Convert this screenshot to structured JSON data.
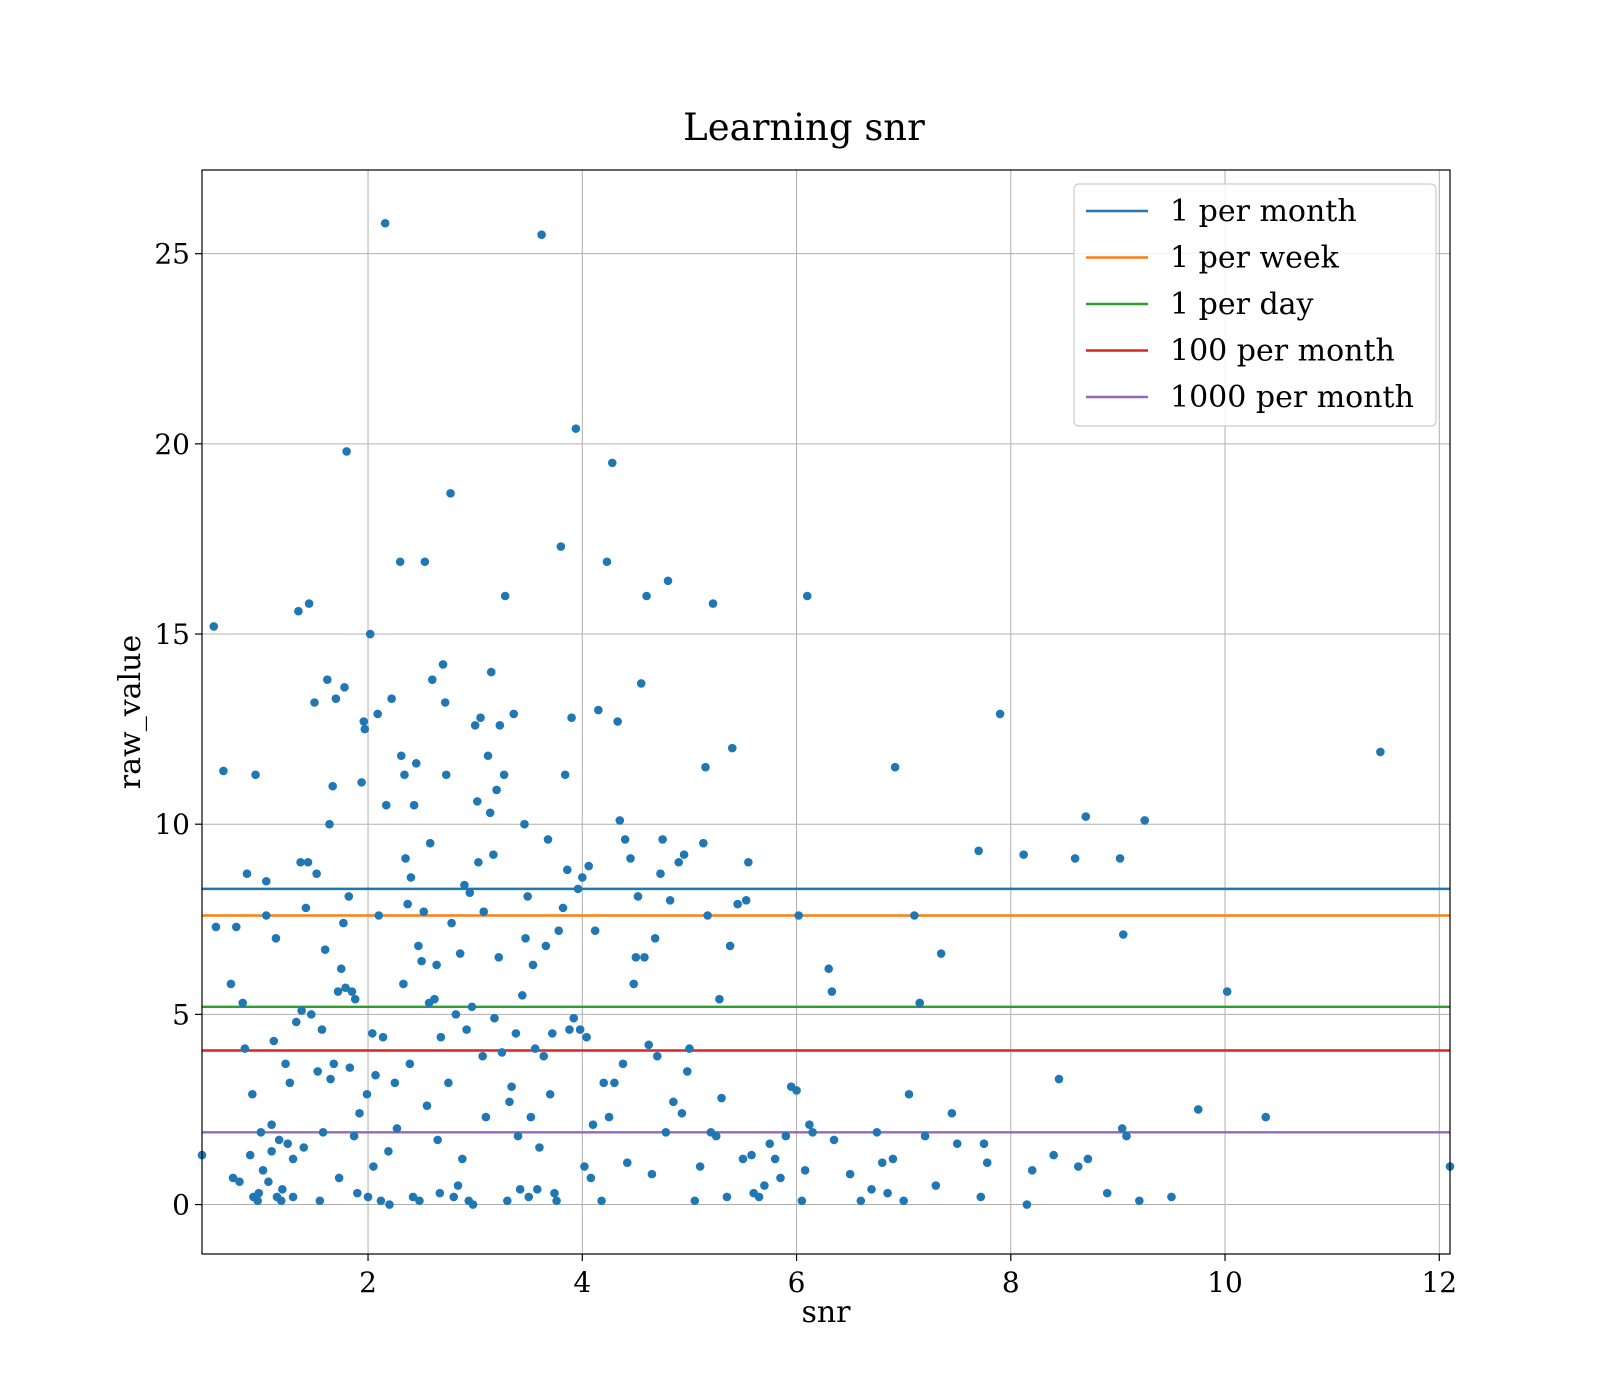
{
  "chart_data": {
    "type": "scatter",
    "title": "Learning snr",
    "xlabel": "snr",
    "ylabel": "raw_value",
    "xlim": [
      0.45,
      12.1
    ],
    "ylim": [
      -1.3,
      27.2
    ],
    "xticks": [
      2,
      4,
      6,
      8,
      10,
      12
    ],
    "yticks": [
      0,
      5,
      10,
      15,
      20,
      25
    ],
    "grid": true,
    "legend_position": "top-right",
    "point_color": "#1f77b4",
    "points": [
      [
        0.45,
        1.3
      ],
      [
        0.56,
        15.2
      ],
      [
        0.58,
        7.3
      ],
      [
        0.65,
        11.4
      ],
      [
        0.72,
        5.8
      ],
      [
        0.74,
        0.7
      ],
      [
        0.77,
        7.3
      ],
      [
        0.8,
        0.6
      ],
      [
        0.83,
        5.3
      ],
      [
        0.85,
        4.1
      ],
      [
        0.87,
        8.7
      ],
      [
        0.9,
        1.3
      ],
      [
        0.92,
        2.9
      ],
      [
        0.93,
        0.2
      ],
      [
        0.95,
        11.3
      ],
      [
        0.97,
        0.1
      ],
      [
        0.98,
        0.3
      ],
      [
        1.0,
        1.9
      ],
      [
        1.02,
        0.9
      ],
      [
        1.05,
        8.5
      ],
      [
        1.05,
        7.6
      ],
      [
        1.07,
        0.6
      ],
      [
        1.1,
        1.4
      ],
      [
        1.1,
        2.1
      ],
      [
        1.12,
        4.3
      ],
      [
        1.14,
        7.0
      ],
      [
        1.15,
        0.2
      ],
      [
        1.17,
        1.7
      ],
      [
        1.19,
        0.1
      ],
      [
        1.2,
        0.4
      ],
      [
        1.23,
        3.7
      ],
      [
        1.25,
        1.6
      ],
      [
        1.27,
        3.2
      ],
      [
        1.3,
        0.2
      ],
      [
        1.3,
        1.2
      ],
      [
        1.33,
        4.8
      ],
      [
        1.35,
        15.6
      ],
      [
        1.37,
        9.0
      ],
      [
        1.38,
        5.1
      ],
      [
        1.4,
        1.5
      ],
      [
        1.42,
        7.8
      ],
      [
        1.44,
        9.0
      ],
      [
        1.45,
        15.8
      ],
      [
        1.47,
        5.0
      ],
      [
        1.5,
        13.2
      ],
      [
        1.52,
        8.7
      ],
      [
        1.53,
        3.5
      ],
      [
        1.55,
        0.1
      ],
      [
        1.57,
        4.6
      ],
      [
        1.58,
        1.9
      ],
      [
        1.6,
        6.7
      ],
      [
        1.62,
        13.8
      ],
      [
        1.64,
        10.0
      ],
      [
        1.65,
        3.3
      ],
      [
        1.67,
        11.0
      ],
      [
        1.68,
        3.7
      ],
      [
        1.7,
        13.3
      ],
      [
        1.72,
        5.6
      ],
      [
        1.73,
        0.7
      ],
      [
        1.75,
        6.2
      ],
      [
        1.77,
        7.4
      ],
      [
        1.78,
        13.6
      ],
      [
        1.79,
        5.7
      ],
      [
        1.8,
        19.8
      ],
      [
        1.82,
        8.1
      ],
      [
        1.83,
        3.6
      ],
      [
        1.85,
        5.6
      ],
      [
        1.87,
        1.8
      ],
      [
        1.88,
        5.4
      ],
      [
        1.9,
        0.3
      ],
      [
        1.92,
        2.4
      ],
      [
        1.94,
        11.1
      ],
      [
        1.96,
        12.7
      ],
      [
        1.97,
        12.5
      ],
      [
        1.99,
        2.9
      ],
      [
        2.0,
        0.2
      ],
      [
        2.02,
        15.0
      ],
      [
        2.04,
        4.5
      ],
      [
        2.05,
        1.0
      ],
      [
        2.07,
        3.4
      ],
      [
        2.09,
        12.9
      ],
      [
        2.1,
        7.6
      ],
      [
        2.12,
        0.1
      ],
      [
        2.14,
        4.4
      ],
      [
        2.16,
        25.8
      ],
      [
        2.17,
        10.5
      ],
      [
        2.19,
        1.4
      ],
      [
        2.2,
        0.0
      ],
      [
        2.22,
        13.3
      ],
      [
        2.25,
        3.2
      ],
      [
        2.27,
        2.0
      ],
      [
        2.3,
        16.9
      ],
      [
        2.31,
        11.8
      ],
      [
        2.33,
        5.8
      ],
      [
        2.34,
        11.3
      ],
      [
        2.35,
        9.1
      ],
      [
        2.37,
        7.9
      ],
      [
        2.39,
        3.7
      ],
      [
        2.4,
        8.6
      ],
      [
        2.42,
        0.2
      ],
      [
        2.43,
        10.5
      ],
      [
        2.45,
        11.6
      ],
      [
        2.47,
        6.8
      ],
      [
        2.48,
        0.1
      ],
      [
        2.5,
        6.4
      ],
      [
        2.52,
        7.7
      ],
      [
        2.53,
        16.9
      ],
      [
        2.55,
        2.6
      ],
      [
        2.57,
        5.3
      ],
      [
        2.58,
        9.5
      ],
      [
        2.6,
        13.8
      ],
      [
        2.62,
        5.4
      ],
      [
        2.64,
        6.3
      ],
      [
        2.65,
        1.7
      ],
      [
        2.67,
        0.3
      ],
      [
        2.68,
        4.4
      ],
      [
        2.7,
        14.2
      ],
      [
        2.72,
        13.2
      ],
      [
        2.73,
        11.3
      ],
      [
        2.75,
        3.2
      ],
      [
        2.77,
        18.7
      ],
      [
        2.78,
        7.4
      ],
      [
        2.8,
        0.2
      ],
      [
        2.82,
        5.0
      ],
      [
        2.84,
        0.5
      ],
      [
        2.86,
        6.6
      ],
      [
        2.88,
        1.2
      ],
      [
        2.9,
        8.4
      ],
      [
        2.92,
        4.6
      ],
      [
        2.94,
        0.1
      ],
      [
        2.95,
        8.2
      ],
      [
        2.97,
        5.2
      ],
      [
        2.98,
        0.0
      ],
      [
        3.0,
        12.6
      ],
      [
        3.02,
        10.6
      ],
      [
        3.03,
        9.0
      ],
      [
        3.05,
        12.8
      ],
      [
        3.07,
        3.9
      ],
      [
        3.08,
        7.7
      ],
      [
        3.1,
        2.3
      ],
      [
        3.12,
        11.8
      ],
      [
        3.14,
        10.3
      ],
      [
        3.15,
        14.0
      ],
      [
        3.17,
        9.2
      ],
      [
        3.18,
        4.9
      ],
      [
        3.2,
        10.9
      ],
      [
        3.22,
        6.5
      ],
      [
        3.23,
        12.6
      ],
      [
        3.25,
        4.0
      ],
      [
        3.27,
        11.3
      ],
      [
        3.28,
        16.0
      ],
      [
        3.3,
        0.1
      ],
      [
        3.32,
        2.7
      ],
      [
        3.34,
        3.1
      ],
      [
        3.36,
        12.9
      ],
      [
        3.38,
        4.5
      ],
      [
        3.4,
        1.8
      ],
      [
        3.42,
        0.4
      ],
      [
        3.44,
        5.5
      ],
      [
        3.46,
        10.0
      ],
      [
        3.47,
        7.0
      ],
      [
        3.49,
        8.1
      ],
      [
        3.5,
        0.2
      ],
      [
        3.52,
        2.3
      ],
      [
        3.54,
        6.3
      ],
      [
        3.56,
        4.1
      ],
      [
        3.58,
        0.4
      ],
      [
        3.6,
        1.5
      ],
      [
        3.62,
        25.5
      ],
      [
        3.64,
        3.9
      ],
      [
        3.66,
        6.8
      ],
      [
        3.68,
        9.6
      ],
      [
        3.7,
        2.9
      ],
      [
        3.72,
        4.5
      ],
      [
        3.74,
        0.3
      ],
      [
        3.76,
        0.1
      ],
      [
        3.78,
        7.2
      ],
      [
        3.8,
        17.3
      ],
      [
        3.82,
        7.8
      ],
      [
        3.84,
        11.3
      ],
      [
        3.86,
        8.8
      ],
      [
        3.88,
        4.6
      ],
      [
        3.9,
        12.8
      ],
      [
        3.92,
        4.9
      ],
      [
        3.94,
        20.4
      ],
      [
        3.96,
        8.3
      ],
      [
        3.98,
        4.6
      ],
      [
        4.0,
        8.6
      ],
      [
        4.02,
        1.0
      ],
      [
        4.04,
        4.4
      ],
      [
        4.06,
        8.9
      ],
      [
        4.08,
        0.7
      ],
      [
        4.1,
        2.1
      ],
      [
        4.12,
        7.2
      ],
      [
        4.15,
        13.0
      ],
      [
        4.18,
        0.1
      ],
      [
        4.2,
        3.2
      ],
      [
        4.23,
        16.9
      ],
      [
        4.25,
        2.3
      ],
      [
        4.28,
        19.5
      ],
      [
        4.3,
        3.2
      ],
      [
        4.33,
        12.7
      ],
      [
        4.35,
        10.1
      ],
      [
        4.38,
        3.7
      ],
      [
        4.4,
        9.6
      ],
      [
        4.42,
        1.1
      ],
      [
        4.45,
        9.1
      ],
      [
        4.48,
        5.8
      ],
      [
        4.5,
        6.5
      ],
      [
        4.52,
        8.1
      ],
      [
        4.55,
        13.7
      ],
      [
        4.58,
        6.5
      ],
      [
        4.6,
        16.0
      ],
      [
        4.62,
        4.2
      ],
      [
        4.65,
        0.8
      ],
      [
        4.68,
        7.0
      ],
      [
        4.7,
        3.9
      ],
      [
        4.73,
        8.7
      ],
      [
        4.75,
        9.6
      ],
      [
        4.78,
        1.9
      ],
      [
        4.8,
        16.4
      ],
      [
        4.82,
        8.0
      ],
      [
        4.85,
        2.7
      ],
      [
        4.9,
        9.0
      ],
      [
        4.93,
        2.4
      ],
      [
        4.95,
        9.2
      ],
      [
        4.98,
        3.5
      ],
      [
        5.0,
        4.1
      ],
      [
        5.05,
        0.1
      ],
      [
        5.1,
        1.0
      ],
      [
        5.13,
        9.5
      ],
      [
        5.15,
        11.5
      ],
      [
        5.17,
        7.6
      ],
      [
        5.2,
        1.9
      ],
      [
        5.22,
        15.8
      ],
      [
        5.25,
        1.8
      ],
      [
        5.28,
        5.4
      ],
      [
        5.3,
        2.8
      ],
      [
        5.35,
        0.2
      ],
      [
        5.38,
        6.8
      ],
      [
        5.4,
        12.0
      ],
      [
        5.45,
        7.9
      ],
      [
        5.5,
        1.2
      ],
      [
        5.53,
        8.0
      ],
      [
        5.55,
        9.0
      ],
      [
        5.58,
        1.3
      ],
      [
        5.6,
        0.3
      ],
      [
        5.65,
        0.2
      ],
      [
        5.7,
        0.5
      ],
      [
        5.75,
        1.6
      ],
      [
        5.8,
        1.2
      ],
      [
        5.85,
        0.7
      ],
      [
        5.9,
        1.8
      ],
      [
        5.95,
        3.1
      ],
      [
        6.0,
        3.0
      ],
      [
        6.02,
        7.6
      ],
      [
        6.05,
        0.1
      ],
      [
        6.08,
        0.9
      ],
      [
        6.1,
        16.0
      ],
      [
        6.12,
        2.1
      ],
      [
        6.15,
        1.9
      ],
      [
        6.3,
        6.2
      ],
      [
        6.33,
        5.6
      ],
      [
        6.35,
        1.7
      ],
      [
        6.5,
        0.8
      ],
      [
        6.6,
        0.1
      ],
      [
        6.7,
        0.4
      ],
      [
        6.75,
        1.9
      ],
      [
        6.8,
        1.1
      ],
      [
        6.85,
        0.3
      ],
      [
        6.9,
        1.2
      ],
      [
        6.92,
        11.5
      ],
      [
        7.0,
        0.1
      ],
      [
        7.05,
        2.9
      ],
      [
        7.1,
        7.6
      ],
      [
        7.15,
        5.3
      ],
      [
        7.2,
        1.8
      ],
      [
        7.3,
        0.5
      ],
      [
        7.35,
        6.6
      ],
      [
        7.45,
        2.4
      ],
      [
        7.5,
        1.6
      ],
      [
        7.7,
        9.3
      ],
      [
        7.72,
        0.2
      ],
      [
        7.75,
        1.6
      ],
      [
        7.78,
        1.1
      ],
      [
        7.9,
        12.9
      ],
      [
        8.12,
        9.2
      ],
      [
        8.15,
        0.0
      ],
      [
        8.2,
        0.9
      ],
      [
        8.4,
        1.3
      ],
      [
        8.45,
        3.3
      ],
      [
        8.6,
        9.1
      ],
      [
        8.63,
        1.0
      ],
      [
        8.7,
        10.2
      ],
      [
        8.72,
        1.2
      ],
      [
        8.9,
        0.3
      ],
      [
        9.02,
        9.1
      ],
      [
        9.04,
        2.0
      ],
      [
        9.05,
        7.1
      ],
      [
        9.08,
        1.8
      ],
      [
        9.2,
        0.1
      ],
      [
        9.25,
        10.1
      ],
      [
        9.5,
        0.2
      ],
      [
        9.75,
        2.5
      ],
      [
        10.02,
        5.6
      ],
      [
        10.38,
        2.3
      ],
      [
        11.45,
        11.9
      ],
      [
        12.1,
        1.0
      ]
    ],
    "series": [
      {
        "name": "1 per month",
        "color": "#1f77b4",
        "y": 8.3
      },
      {
        "name": "1 per week",
        "color": "#ff7f0e",
        "y": 7.6
      },
      {
        "name": "1 per day",
        "color": "#2ca02c",
        "y": 5.2
      },
      {
        "name": "100 per month",
        "color": "#d62728",
        "y": 4.05
      },
      {
        "name": "1000 per month",
        "color": "#9467bd",
        "y": 1.9
      }
    ]
  }
}
